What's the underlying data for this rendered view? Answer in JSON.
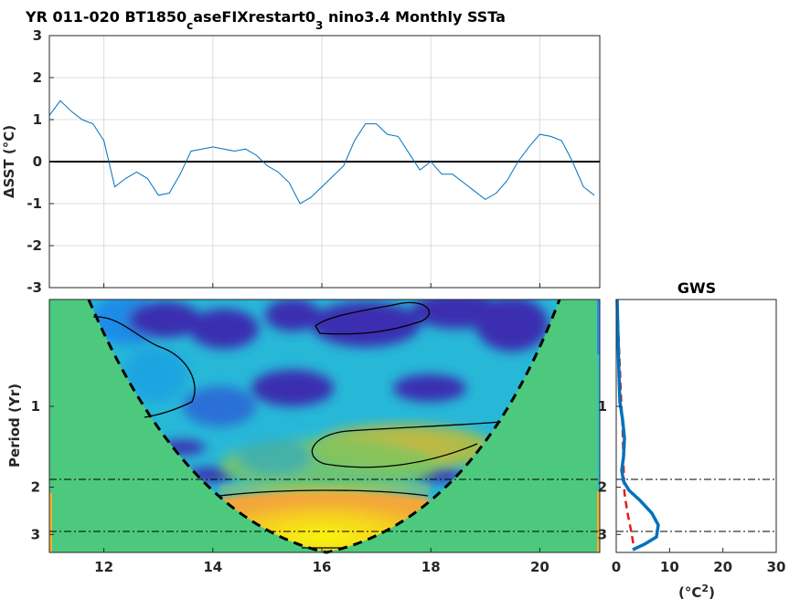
{
  "title": {
    "pre": "YR 011-020 BT1850",
    "sub1": "c",
    "mid": "aseFIXrestart0",
    "sub2": "3",
    "post": " nino3.4 Monthly SSTa"
  },
  "top_panel": {
    "ylabel": "ΔSST (°C)",
    "yticks": [
      "3",
      "2",
      "1",
      "0",
      "-1",
      "-2",
      "-3"
    ]
  },
  "wavelet_panel": {
    "ylabel": "Period (Yr)",
    "yticks": [
      "1",
      "2",
      "3"
    ],
    "xticks": [
      "12",
      "14",
      "16",
      "18",
      "20"
    ]
  },
  "gws_panel": {
    "title": "GWS",
    "yticks": [
      "1",
      "2",
      "3"
    ],
    "xticks": [
      "0",
      "10",
      "20",
      "30"
    ],
    "xlabel_pre": "(°C",
    "xlabel_sup": "2",
    "xlabel_post": ")"
  },
  "colors": {
    "series": "#0072BD",
    "gws": "#0072BD",
    "significance": "#e41a1c",
    "background": "#4cc97d"
  },
  "chart_data": [
    {
      "type": "line",
      "title": "YR 011-020 BT1850_caseFIXrestart0_3 nino3.4 Monthly SSTa",
      "xlabel": "",
      "ylabel": "ΔSST (°C)",
      "xlim": [
        11,
        21.1
      ],
      "ylim": [
        -3,
        3
      ],
      "grid": true,
      "series": [
        {
          "x": [
            11.0,
            11.2,
            11.4,
            11.6,
            11.8,
            12.0,
            12.2,
            12.4,
            12.6,
            12.8,
            13.0,
            13.2,
            13.4,
            13.6,
            13.8,
            14.0,
            14.2,
            14.4,
            14.6,
            14.8,
            15.0,
            15.2,
            15.4,
            15.6,
            15.8,
            16.0,
            16.2,
            16.4,
            16.6,
            16.8,
            17.0,
            17.2,
            17.4,
            17.6,
            17.8,
            18.0,
            18.2,
            18.4,
            18.6,
            18.8,
            19.0,
            19.2,
            19.4,
            19.6,
            19.8,
            20.0,
            20.2,
            20.4,
            20.6,
            20.8,
            21.0
          ],
          "values": [
            1.1,
            1.45,
            1.2,
            1.0,
            0.9,
            0.5,
            -0.6,
            -0.4,
            -0.25,
            -0.4,
            -0.8,
            -0.75,
            -0.3,
            0.25,
            0.3,
            0.35,
            0.3,
            0.25,
            0.3,
            0.15,
            -0.1,
            -0.25,
            -0.5,
            -1.0,
            -0.85,
            -0.6,
            -0.35,
            -0.1,
            0.5,
            0.9,
            0.9,
            0.65,
            0.6,
            0.2,
            -0.2,
            0.0,
            -0.3,
            -0.3,
            -0.5,
            -0.7,
            -0.9,
            -0.75,
            -0.45,
            0.0,
            0.35,
            0.65,
            0.6,
            0.5,
            0.0,
            -0.6,
            -0.8
          ]
        }
      ],
      "reference_line": 0
    },
    {
      "type": "heatmap",
      "ylabel": "Period (Yr)",
      "xlim": [
        11,
        21.1
      ],
      "y_scale": "log",
      "ylim": [
        0.4,
        3.5
      ],
      "contours": "black solid",
      "cone_of_influence": "black dashed"
    },
    {
      "type": "line",
      "title": "GWS",
      "xlabel": "(°C2)",
      "xlim": [
        0,
        30
      ],
      "y_scale": "log",
      "ylim": [
        0.4,
        3.5
      ],
      "series": [
        {
          "name": "global wavelet spectrum",
          "style": "solid blue",
          "x": [
            0.3,
            0.5,
            0.8,
            1.0,
            1.5,
            1.8,
            1.5,
            1.3,
            2.2,
            4.0,
            6.5,
            8.2,
            7.5,
            5.0,
            3.0
          ],
          "y": [
            0.42,
            0.6,
            0.8,
            1.0,
            1.2,
            1.45,
            1.7,
            2.0,
            2.25,
            2.5,
            2.75,
            2.95,
            3.1,
            3.25,
            3.45
          ]
        },
        {
          "name": "significance",
          "style": "dashed red",
          "x": [
            0.2,
            0.4,
            0.7,
            1.0,
            1.3,
            1.6,
            2.0,
            2.5,
            3.0
          ],
          "y": [
            0.42,
            0.6,
            0.8,
            1.0,
            1.3,
            1.7,
            2.2,
            2.8,
            3.45
          ]
        }
      ],
      "reference_lines_y": [
        2,
        3
      ]
    }
  ]
}
